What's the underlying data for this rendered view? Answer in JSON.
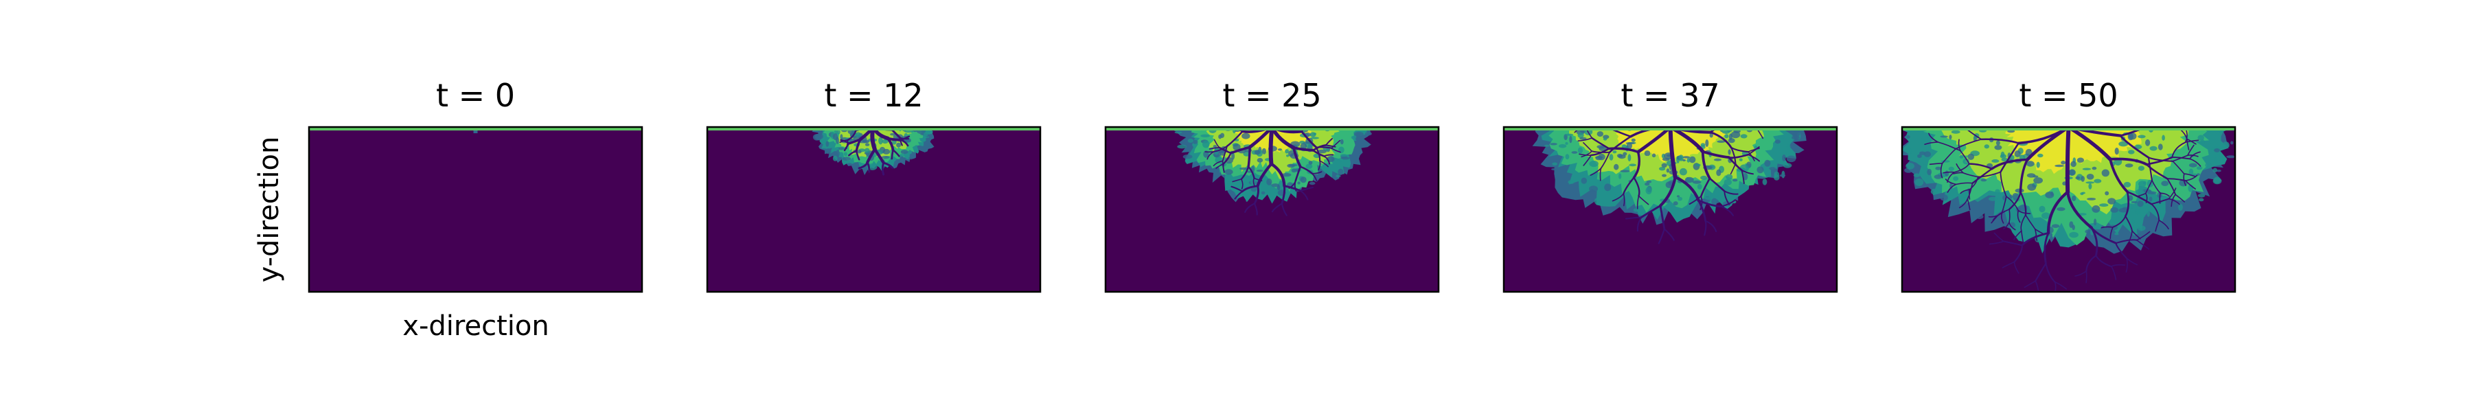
{
  "figure": {
    "xlabel": "x-direction",
    "ylabel": "y-direction"
  },
  "chart_data": [
    {
      "type": "heatmap",
      "title": "t = 0",
      "t": 0,
      "xlabel": "x-direction",
      "ylabel": "y-direction",
      "growth_level": 0.0,
      "grid": false
    },
    {
      "type": "heatmap",
      "title": "t = 12",
      "t": 12,
      "xlabel": "",
      "ylabel": "",
      "growth_level": 0.24,
      "grid": false
    },
    {
      "type": "heatmap",
      "title": "t = 25",
      "t": 25,
      "xlabel": "",
      "ylabel": "",
      "growth_level": 0.5,
      "grid": false
    },
    {
      "type": "heatmap",
      "title": "t = 37",
      "t": 37,
      "xlabel": "",
      "ylabel": "",
      "growth_level": 0.74,
      "grid": false
    },
    {
      "type": "heatmap",
      "title": "t = 50",
      "t": 50,
      "xlabel": "",
      "ylabel": "",
      "growth_level": 1.0,
      "grid": false
    }
  ],
  "colors": {
    "background": "#440154",
    "surface": "#5ec962",
    "inner": "#a0da39",
    "mid": "#35b779",
    "edge": "#21918c",
    "deep": "#31688e",
    "bright": "#fde725",
    "channel": "#3b0f70"
  }
}
